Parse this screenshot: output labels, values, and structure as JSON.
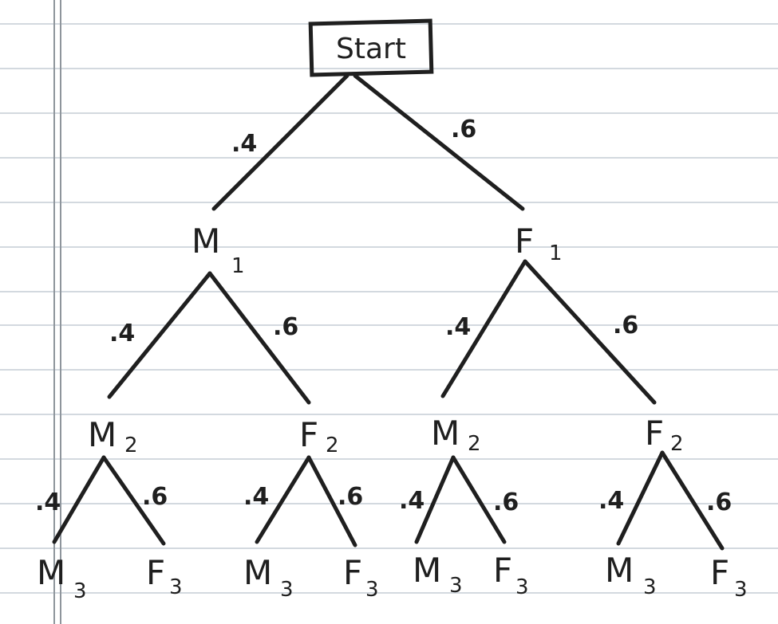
{
  "root": {
    "label": "Start"
  },
  "level1": [
    {
      "letter": "M",
      "sub": "1",
      "prob": ".4"
    },
    {
      "letter": "F",
      "sub": "1",
      "prob": ".6"
    }
  ],
  "level2": [
    {
      "letter": "M",
      "sub": "2",
      "prob": ".4"
    },
    {
      "letter": "F",
      "sub": "2",
      "prob": ".6"
    },
    {
      "letter": "M",
      "sub": "2",
      "prob": ".4"
    },
    {
      "letter": "F",
      "sub": "2",
      "prob": ".6"
    }
  ],
  "level3": [
    {
      "letter": "M",
      "sub": "3",
      "prob": ".4"
    },
    {
      "letter": "F",
      "sub": "3",
      "prob": ".6"
    },
    {
      "letter": "M",
      "sub": "3",
      "prob": ".4"
    },
    {
      "letter": "F",
      "sub": "3",
      "prob": ".6"
    },
    {
      "letter": "M",
      "sub": "3",
      "prob": ".4"
    },
    {
      "letter": "F",
      "sub": "3",
      "prob": ".6"
    },
    {
      "letter": "M",
      "sub": "3",
      "prob": ".4"
    },
    {
      "letter": "F",
      "sub": "3",
      "prob": ".6"
    }
  ]
}
